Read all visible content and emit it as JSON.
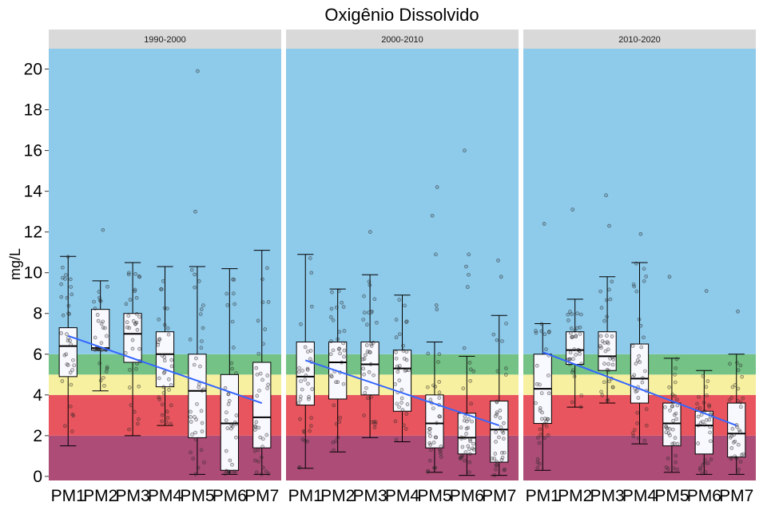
{
  "chart_data": {
    "type": "boxplot",
    "title": "Oxigênio Dissolvido",
    "ylabel": "mg/L",
    "xlabel": "",
    "ylim": [
      -0.2,
      21
    ],
    "yticks": [
      0,
      2,
      4,
      6,
      8,
      10,
      12,
      14,
      16,
      18,
      20
    ],
    "categories": [
      "PM1",
      "PM2",
      "PM3",
      "PM4",
      "PM5",
      "PM6",
      "PM7"
    ],
    "bands": [
      {
        "from": -0.2,
        "to": 2,
        "color": "#AC4C77"
      },
      {
        "from": 2,
        "to": 4,
        "color": "#E8555E"
      },
      {
        "from": 4,
        "to": 5,
        "color": "#F7F0A0"
      },
      {
        "from": 5,
        "to": 6,
        "color": "#74C285"
      },
      {
        "from": 6,
        "to": 21,
        "color": "#8ECAEA"
      }
    ],
    "colors": {
      "strip_bg": "#D9D9D9",
      "box_fill": "#F8F8FF",
      "trend": "#3366FF",
      "point": "#333333"
    },
    "panels": [
      {
        "label": "1990-2000",
        "boxes": [
          {
            "min": 1.5,
            "q1": 4.9,
            "median": 6.4,
            "q3": 7.3,
            "max": 10.8,
            "outliers": []
          },
          {
            "min": 4.2,
            "q1": 6.2,
            "median": 6.3,
            "q3": 8.2,
            "max": 9.6,
            "outliers": [
              12.1
            ]
          },
          {
            "min": 2.0,
            "q1": 5.6,
            "median": 7.0,
            "q3": 8.0,
            "max": 10.5,
            "outliers": []
          },
          {
            "min": 2.5,
            "q1": 4.4,
            "median": 6.0,
            "q3": 7.1,
            "max": 10.3,
            "outliers": []
          },
          {
            "min": 0.1,
            "q1": 1.9,
            "median": 4.2,
            "q3": 6.0,
            "max": 10.3,
            "outliers": [
              13.0,
              19.9
            ]
          },
          {
            "min": 0.1,
            "q1": 0.3,
            "median": 2.6,
            "q3": 5.0,
            "max": 10.2,
            "outliers": []
          },
          {
            "min": 0.1,
            "q1": 1.4,
            "median": 2.9,
            "q3": 5.6,
            "max": 11.1,
            "outliers": []
          }
        ],
        "trend": [
          6.9,
          3.6
        ]
      },
      {
        "label": "2000-2010",
        "boxes": [
          {
            "min": 0.4,
            "q1": 3.5,
            "median": 4.9,
            "q3": 6.6,
            "max": 10.9,
            "outliers": []
          },
          {
            "min": 1.2,
            "q1": 3.8,
            "median": 5.6,
            "q3": 6.6,
            "max": 9.2,
            "outliers": []
          },
          {
            "min": 1.9,
            "q1": 4.0,
            "median": 5.5,
            "q3": 6.6,
            "max": 9.9,
            "outliers": [
              12.0
            ]
          },
          {
            "min": 1.7,
            "q1": 3.2,
            "median": 5.3,
            "q3": 6.2,
            "max": 8.9,
            "outliers": []
          },
          {
            "min": 0.2,
            "q1": 1.4,
            "median": 2.6,
            "q3": 4.0,
            "max": 6.6,
            "outliers": [
              8.2,
              8.4,
              10.9,
              12.8,
              14.2
            ]
          },
          {
            "min": 0.05,
            "q1": 1.1,
            "median": 1.9,
            "q3": 3.1,
            "max": 5.9,
            "outliers": [
              6.3,
              9.3,
              9.9,
              10.3,
              10.9,
              16.0
            ]
          },
          {
            "min": 0.05,
            "q1": 0.7,
            "median": 2.3,
            "q3": 3.7,
            "max": 7.9,
            "outliers": [
              9.8,
              10.6
            ]
          }
        ],
        "trend": [
          5.7,
          2.5
        ]
      },
      {
        "label": "2010-2020",
        "boxes": [
          {
            "min": 0.3,
            "q1": 2.6,
            "median": 4.3,
            "q3": 6.0,
            "max": 7.5,
            "outliers": [
              12.4
            ]
          },
          {
            "min": 3.4,
            "q1": 5.5,
            "median": 6.2,
            "q3": 7.1,
            "max": 8.7,
            "outliers": [
              13.1
            ]
          },
          {
            "min": 3.6,
            "q1": 5.2,
            "median": 5.9,
            "q3": 7.1,
            "max": 9.8,
            "outliers": [
              12.3,
              13.8
            ]
          },
          {
            "min": 1.6,
            "q1": 3.6,
            "median": 4.8,
            "q3": 6.5,
            "max": 10.5,
            "outliers": [
              11.9
            ]
          },
          {
            "min": 0.2,
            "q1": 1.5,
            "median": 2.6,
            "q3": 3.6,
            "max": 5.8,
            "outliers": [
              9.8
            ]
          },
          {
            "min": 0.1,
            "q1": 1.1,
            "median": 2.5,
            "q3": 3.2,
            "max": 5.2,
            "outliers": [
              9.1
            ]
          },
          {
            "min": 0.1,
            "q1": 0.95,
            "median": 2.1,
            "q3": 3.6,
            "max": 6.0,
            "outliers": [
              8.1
            ]
          }
        ],
        "trend": [
          6.1,
          2.5
        ]
      }
    ]
  }
}
